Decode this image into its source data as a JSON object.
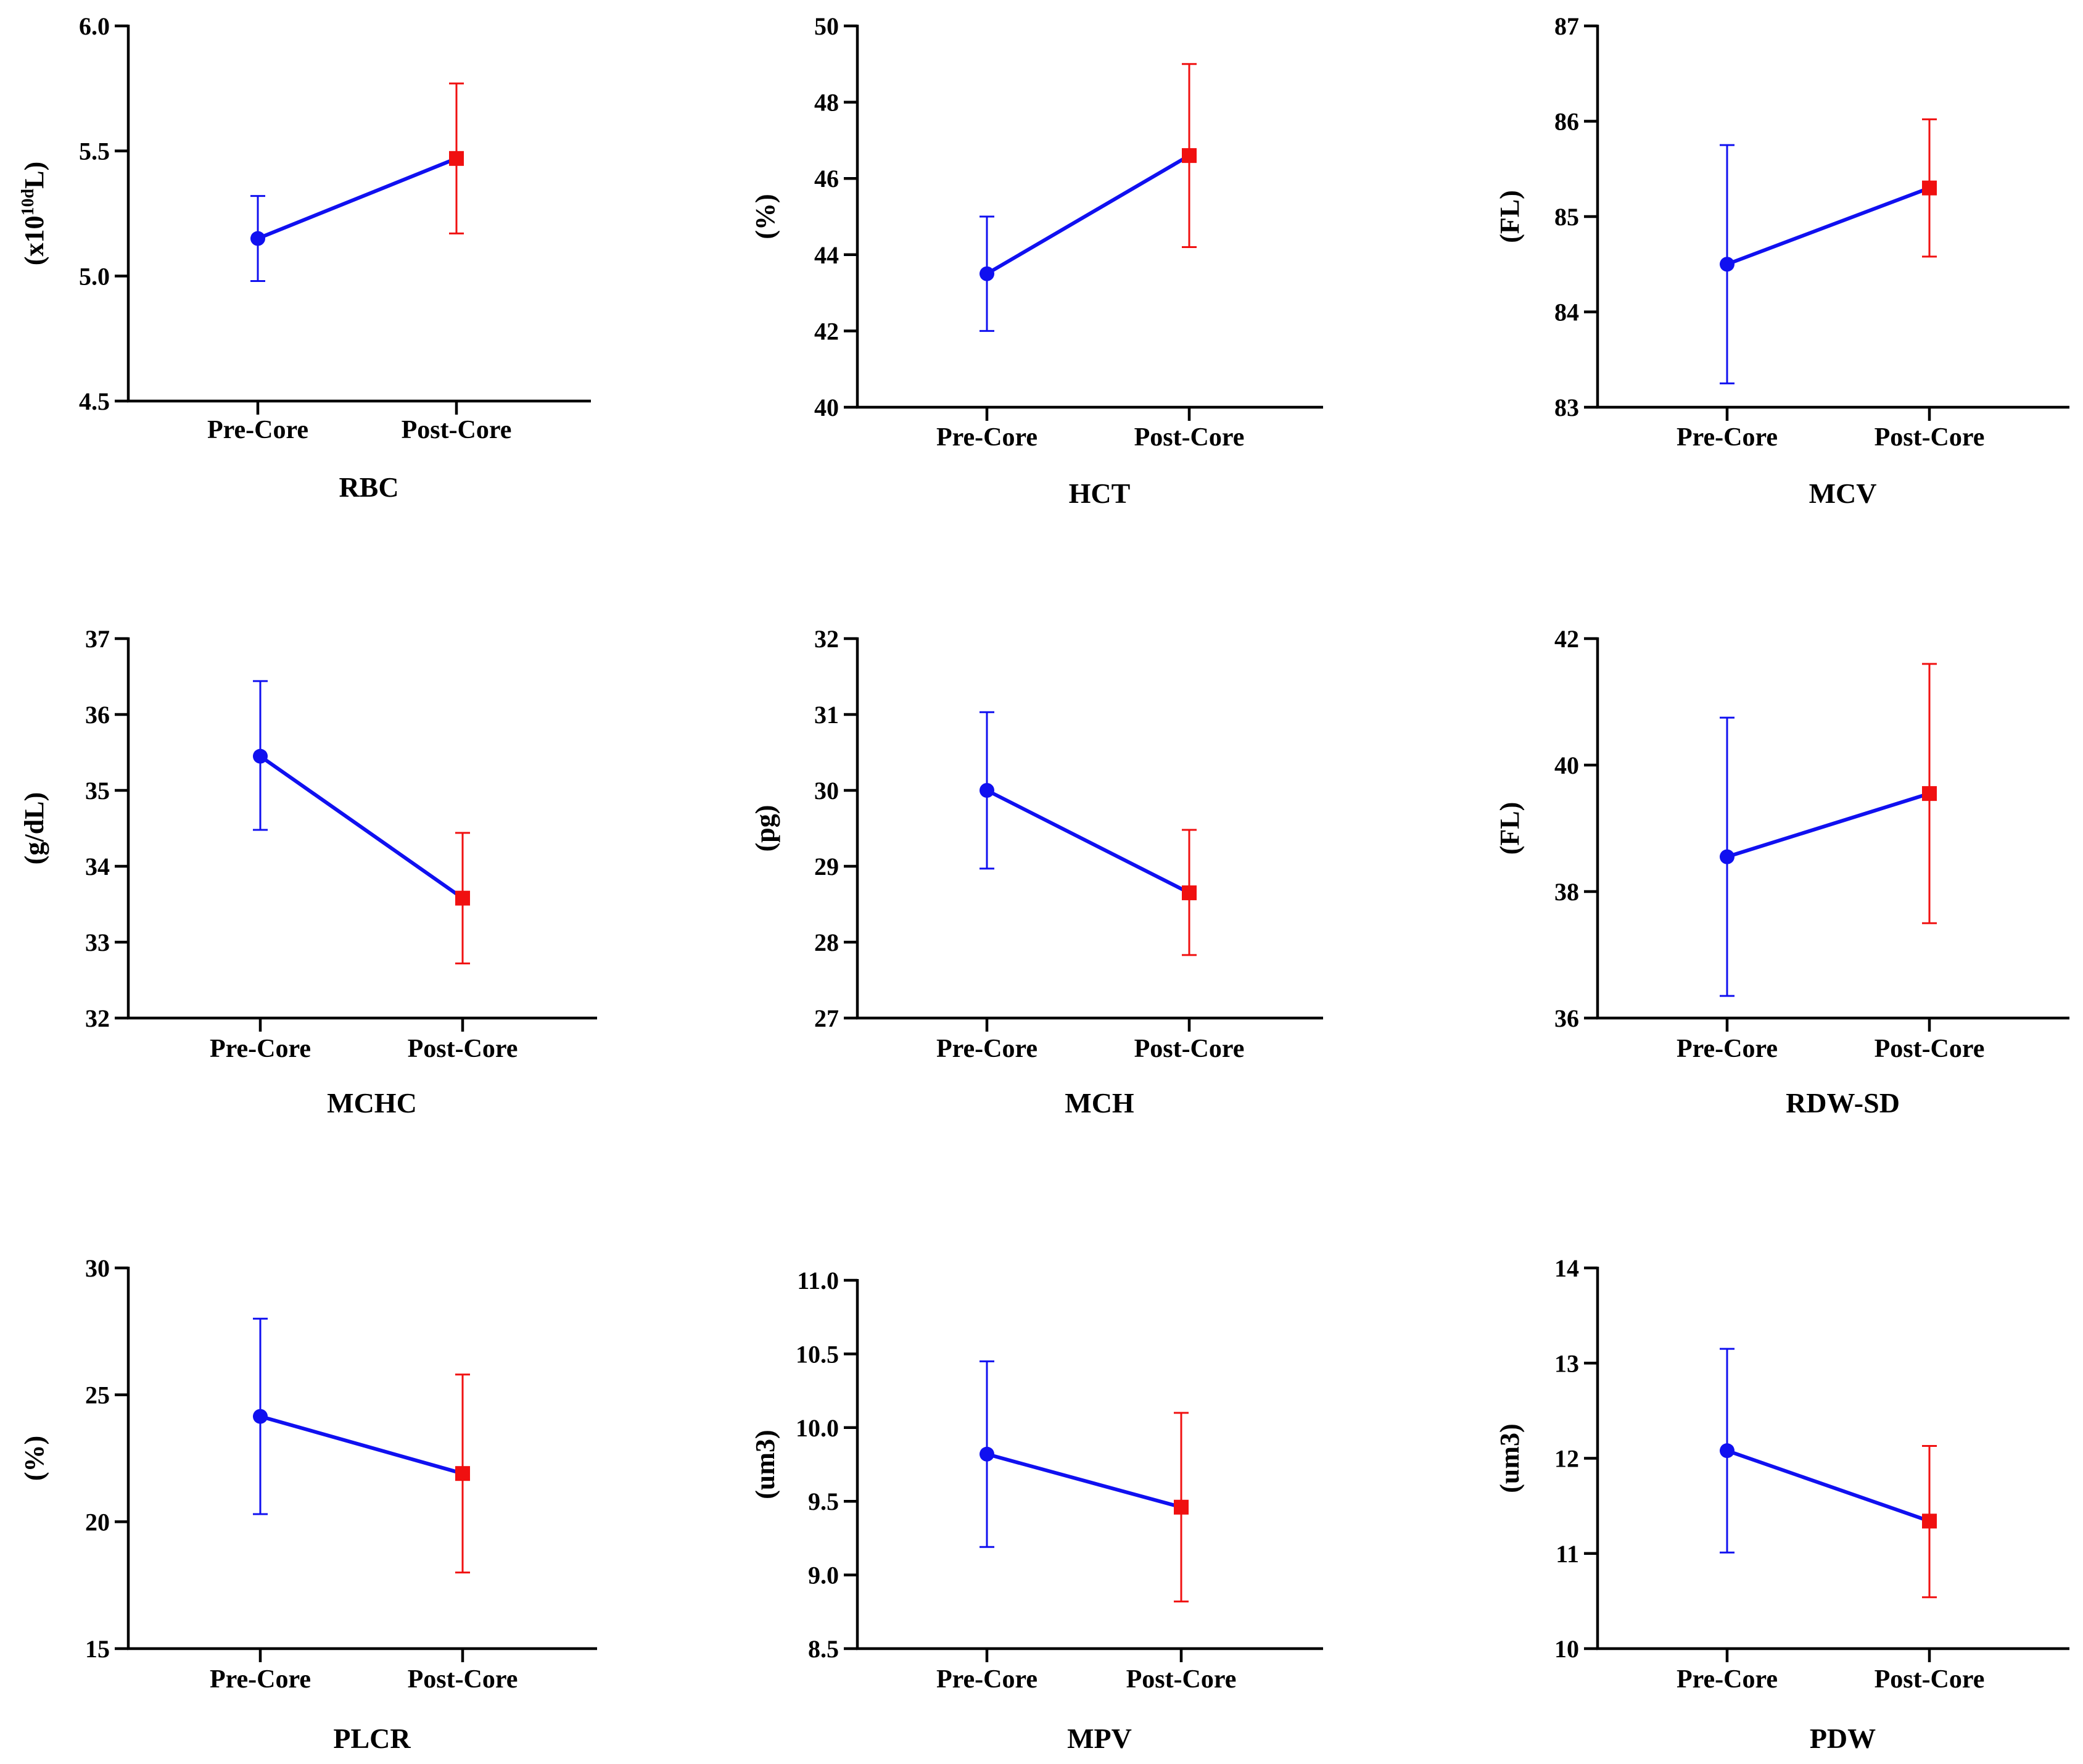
{
  "colors": {
    "pre": "#1010f0",
    "post": "#f01010",
    "line": "#1010f0",
    "axis": "#000000"
  },
  "chart_data": [
    {
      "type": "line",
      "title": "RBC",
      "ylabel": "(x10",
      "ylabel_sup": "10d",
      "ylabel_tail": "L)",
      "categories": [
        "Pre-Core",
        "Post-Core"
      ],
      "values": [
        5.15,
        5.47
      ],
      "error_low": [
        4.98,
        5.17
      ],
      "error_high": [
        5.32,
        5.77
      ],
      "ylim": [
        4.5,
        6.0
      ],
      "yticks": [
        4.5,
        5.0,
        5.5,
        6.0
      ],
      "ytick_labels": [
        "4.5",
        "5.0",
        "5.5",
        "6.0"
      ]
    },
    {
      "type": "line",
      "title": "HCT",
      "ylabel": "(%)",
      "categories": [
        "Pre-Core",
        "Post-Core"
      ],
      "values": [
        43.5,
        46.6
      ],
      "error_low": [
        42.0,
        44.2
      ],
      "error_high": [
        45.0,
        49.0
      ],
      "ylim": [
        40,
        50
      ],
      "yticks": [
        40,
        42,
        44,
        46,
        48,
        50
      ],
      "ytick_labels": [
        "40",
        "42",
        "44",
        "46",
        "48",
        "50"
      ]
    },
    {
      "type": "line",
      "title": "MCV",
      "ylabel": "(FL)",
      "categories": [
        "Pre-Core",
        "Post-Core"
      ],
      "values": [
        84.5,
        85.3
      ],
      "error_low": [
        83.25,
        84.58
      ],
      "error_high": [
        85.75,
        86.02
      ],
      "ylim": [
        83,
        87
      ],
      "yticks": [
        83,
        84,
        85,
        86,
        87
      ],
      "ytick_labels": [
        "83",
        "84",
        "85",
        "86",
        "87"
      ]
    },
    {
      "type": "line",
      "title": "MCHC",
      "ylabel": "(g/dL)",
      "categories": [
        "Pre-Core",
        "Post-Core"
      ],
      "values": [
        35.45,
        33.58
      ],
      "error_low": [
        34.48,
        32.72
      ],
      "error_high": [
        36.44,
        34.44
      ],
      "ylim": [
        32,
        37
      ],
      "yticks": [
        32,
        33,
        34,
        35,
        36,
        37
      ],
      "ytick_labels": [
        "32",
        "33",
        "34",
        "35",
        "36",
        "37"
      ]
    },
    {
      "type": "line",
      "title": "MCH",
      "ylabel": "(pg)",
      "categories": [
        "Pre-Core",
        "Post-Core"
      ],
      "values": [
        30.0,
        28.65
      ],
      "error_low": [
        28.97,
        27.83
      ],
      "error_high": [
        31.03,
        29.48
      ],
      "ylim": [
        27,
        32
      ],
      "yticks": [
        27,
        28,
        29,
        30,
        31,
        32
      ],
      "ytick_labels": [
        "27",
        "28",
        "29",
        "30",
        "31",
        "32"
      ]
    },
    {
      "type": "line",
      "title": "RDW-SD",
      "ylabel": "(FL)",
      "categories": [
        "Pre-Core",
        "Post-Core"
      ],
      "values": [
        38.55,
        39.55
      ],
      "error_low": [
        36.35,
        37.5
      ],
      "error_high": [
        40.75,
        41.6
      ],
      "ylim": [
        36,
        42
      ],
      "yticks": [
        36,
        38,
        40,
        42
      ],
      "ytick_labels": [
        "36",
        "38",
        "40",
        "42"
      ]
    },
    {
      "type": "line",
      "title": "PLCR",
      "ylabel": "(%)",
      "categories": [
        "Pre-Core",
        "Post-Core"
      ],
      "values": [
        24.15,
        21.9
      ],
      "error_low": [
        20.3,
        18.0
      ],
      "error_high": [
        28.0,
        25.8
      ],
      "ylim": [
        15,
        30
      ],
      "yticks": [
        15,
        20,
        25,
        30
      ],
      "ytick_labels": [
        "15",
        "20",
        "25",
        "30"
      ]
    },
    {
      "type": "line",
      "title": "MPV",
      "ylabel": "(um3)",
      "categories": [
        "Pre-Core",
        "Post-Core"
      ],
      "values": [
        9.82,
        9.46
      ],
      "error_low": [
        9.19,
        8.82
      ],
      "error_high": [
        10.45,
        10.1
      ],
      "ylim": [
        8.5,
        11.0
      ],
      "yticks": [
        8.5,
        9.0,
        9.5,
        10.0,
        10.5,
        11.0
      ],
      "ytick_labels": [
        "8.5",
        "9.0",
        "9.5",
        "10.0",
        "10.5",
        "11.0"
      ]
    },
    {
      "type": "line",
      "title": "PDW",
      "ylabel": "(um3)",
      "categories": [
        "Pre-Core",
        "Post-Core"
      ],
      "values": [
        12.08,
        11.34
      ],
      "error_low": [
        11.01,
        10.54
      ],
      "error_high": [
        13.15,
        12.13
      ],
      "ylim": [
        10,
        14
      ],
      "yticks": [
        10,
        11,
        12,
        13,
        14
      ],
      "ytick_labels": [
        "10",
        "11",
        "12",
        "13",
        "14"
      ]
    }
  ]
}
